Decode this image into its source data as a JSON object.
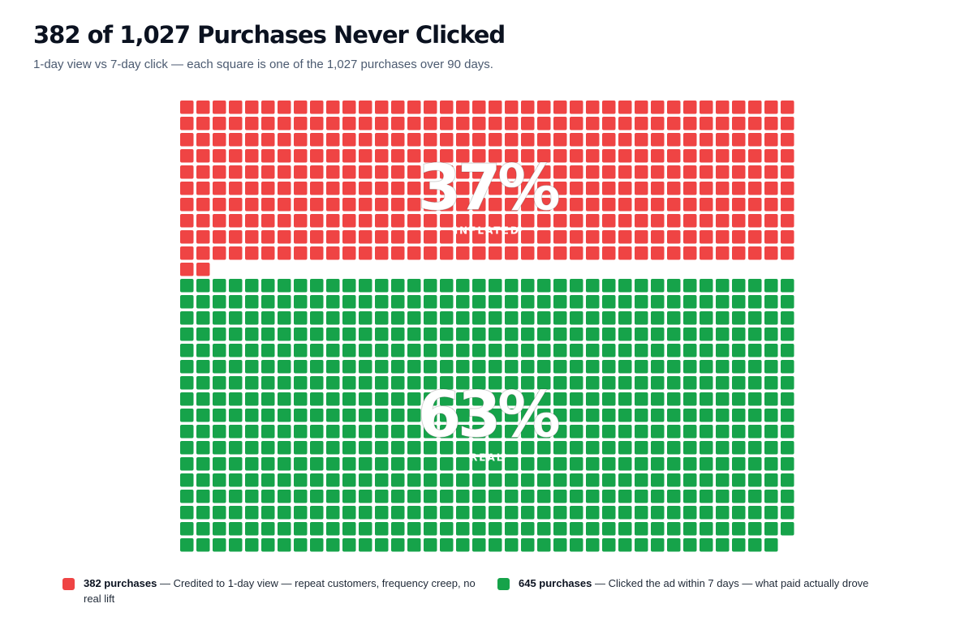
{
  "title": "382 of 1,027 Purchases Never Clicked",
  "subtitle": "1-day view vs 7-day click — each square is one of the 1,027 purchases over 90 days.",
  "colors": {
    "inflated": "#ef4444",
    "real": "#16a34a"
  },
  "chart_data": {
    "type": "waffle",
    "total": 1027,
    "columns": 38,
    "series": [
      {
        "key": "inflated",
        "value": 382,
        "percent_label": "37%",
        "label": "INFLATED",
        "color": "#ef4444"
      },
      {
        "key": "real",
        "value": 645,
        "percent_label": "63%",
        "label": "REAL",
        "color": "#16a34a"
      }
    ]
  },
  "legend": {
    "inflated": {
      "count": "382 purchases",
      "text": " — Credited to 1-day view — repeat customers, frequency creep, no real lift"
    },
    "real": {
      "count": "645 purchases",
      "text": " — Clicked the ad within 7 days — what paid actually drove"
    }
  }
}
